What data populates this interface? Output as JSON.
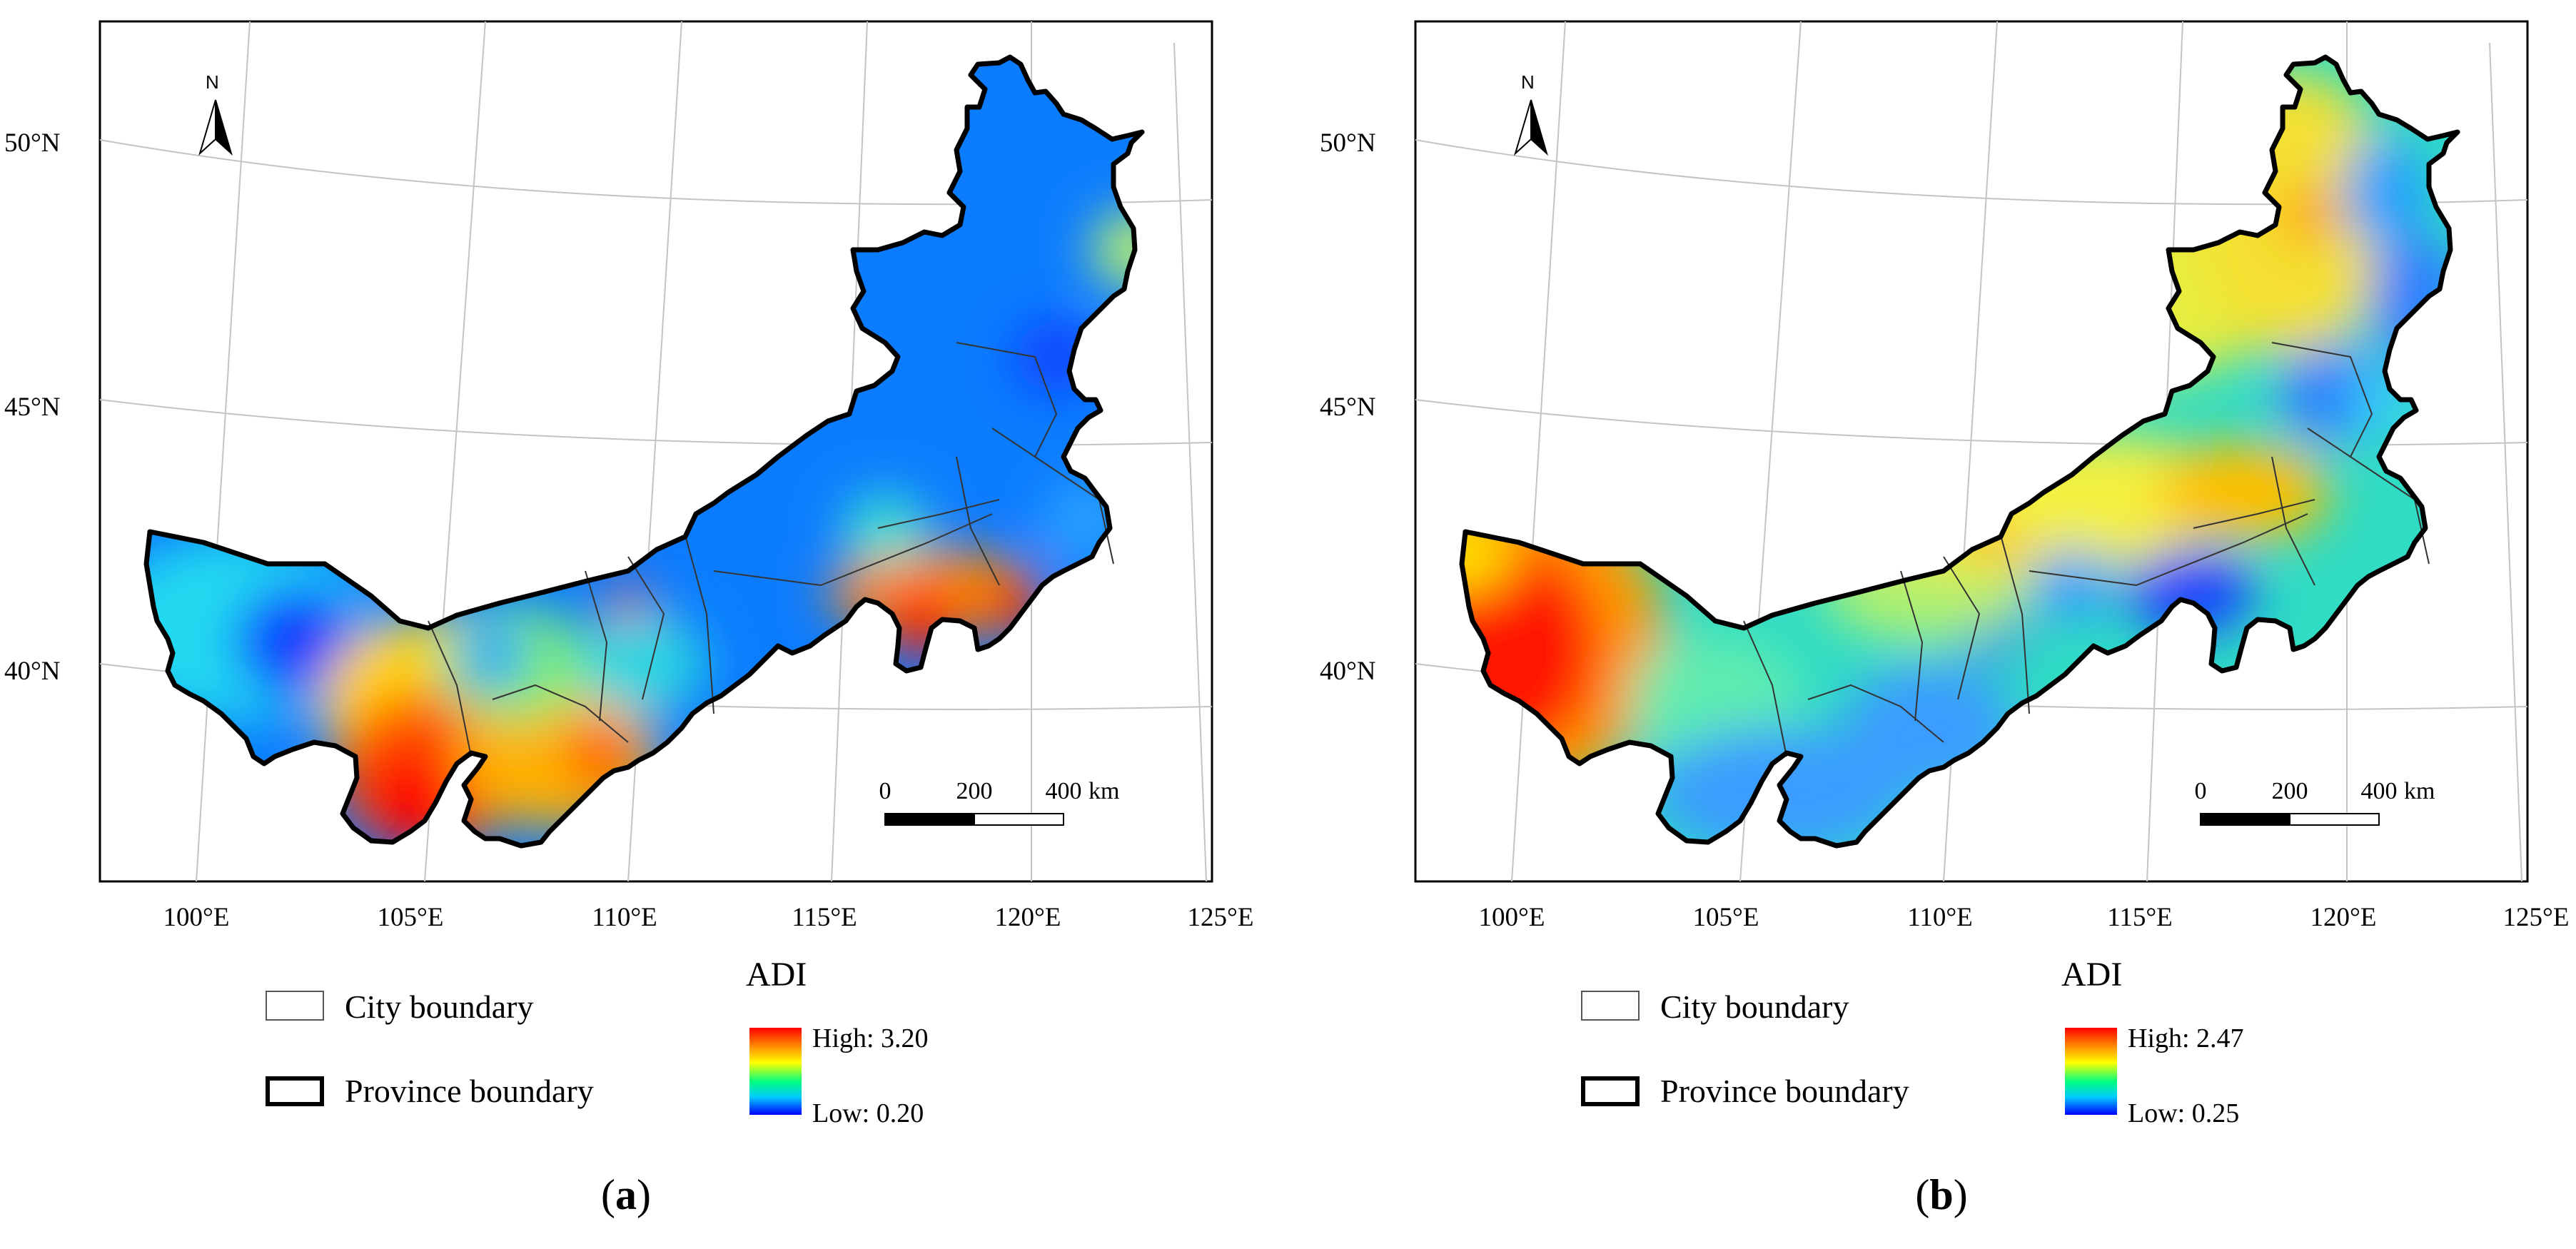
{
  "panels": [
    {
      "id": "a",
      "caption_open": "(",
      "caption_letter": "a",
      "caption_close": ")",
      "legend": {
        "city_boundary_label": "City boundary",
        "province_boundary_label": "Province boundary",
        "variable_title": "ADI",
        "high_label": "High: 3.20",
        "low_label": "Low: 0.20"
      },
      "hotspots": "low ADI across most of the region; high values in the southwest and southeast"
    },
    {
      "id": "b",
      "caption_open": "(",
      "caption_letter": "b",
      "caption_close": ")",
      "legend": {
        "city_boundary_label": "City boundary",
        "province_boundary_label": "Province boundary",
        "variable_title": "ADI",
        "high_label": "High: 2.47",
        "low_label": "Low: 0.25"
      },
      "hotspots": "high ADI in the far west; moderate to high values in the northeast"
    }
  ],
  "map": {
    "latitude_labels": [
      "50°N",
      "45°N",
      "40°N"
    ],
    "longitude_labels": [
      "100°E",
      "105°E",
      "110°E",
      "115°E",
      "120°E",
      "125°E"
    ],
    "north_arrow_letter": "N",
    "scale_bar": {
      "ticks": [
        "0",
        "200",
        "400"
      ],
      "unit": "km"
    },
    "colors": {
      "ramp_high": "#ff0000",
      "ramp_mid": "#ffff00",
      "ramp_low": "#0000ff",
      "province_boundary": "#000000",
      "city_boundary": "#333333",
      "graticule": "#bdbdbd"
    }
  }
}
